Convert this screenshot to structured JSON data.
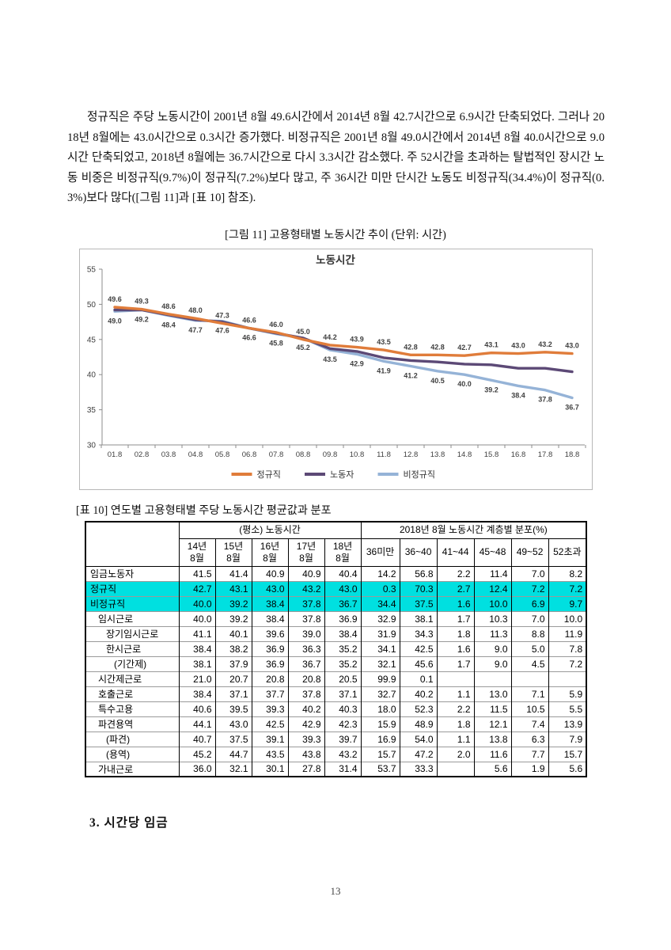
{
  "page": {
    "paragraph": "정규직은 주당 노동시간이 2001년 8월 49.6시간에서 2014년 8월 42.7시간으로 6.9시간 단축되었다. 그러나 2018년 8월에는 43.0시간으로 0.3시간 증가했다. 비정규직은 2001년 8월 49.0시간에서 2014년 8월 40.0시간으로 9.0시간 단축되었고, 2018년 8월에는 36.7시간으로 다시 3.3시간 감소했다. 주 52시간을 초과하는 탈법적인 장시간 노동 비중은 비정규직(9.7%)이 정규직(7.2%)보다 많고, 주 36시간 미만 단시간 노동도 비정규직(34.4%)이 정규직(0.3%)보다 많다([그림 11]과 [표 10] 참조).",
    "figure_caption": "[그림 11] 고용형태별 노동시간 추이 (단위: 시간)",
    "table_caption": "[표 10] 연도별 고용형태별 주당 노동시간 평균값과 분포",
    "section_heading": "3. 시간당 임금",
    "page_number": "13"
  },
  "chart_data": {
    "type": "line",
    "title": "노동시간",
    "x": [
      "01.8",
      "02.8",
      "03.8",
      "04.8",
      "05.8",
      "06.8",
      "07.8",
      "08.8",
      "09.8",
      "10.8",
      "11.8",
      "12.8",
      "13.8",
      "14.8",
      "15.8",
      "16.8",
      "17.8",
      "18.8"
    ],
    "ylim": [
      30,
      55
    ],
    "yticks": [
      30,
      35,
      40,
      45,
      50,
      55
    ],
    "grid": false,
    "legend_position": "bottom",
    "axis_color": "#8c8c8c",
    "label_color": "#3f3f3f",
    "series": [
      {
        "name": "비정규직",
        "color": "#95b3d7",
        "label_side": "below",
        "labels_shown": true,
        "values": [
          49.0,
          49.2,
          48.4,
          47.7,
          47.6,
          46.6,
          45.8,
          45.2,
          43.5,
          42.9,
          41.9,
          41.2,
          40.5,
          40.0,
          39.2,
          38.4,
          37.8,
          36.7
        ]
      },
      {
        "name": "노동자",
        "color": "#5c4976",
        "label_side": "none",
        "labels_shown": false,
        "values": [
          49.2,
          49.2,
          48.5,
          47.8,
          47.5,
          46.6,
          45.9,
          45.2,
          43.7,
          43.3,
          42.4,
          42.0,
          41.8,
          41.5,
          41.4,
          40.9,
          40.9,
          40.4
        ]
      },
      {
        "name": "정규직",
        "color": "#e07c3a",
        "label_side": "above",
        "labels_shown": true,
        "values": [
          49.6,
          49.3,
          48.6,
          48.0,
          47.3,
          46.6,
          46.0,
          45.0,
          44.2,
          43.9,
          43.5,
          42.8,
          42.8,
          42.7,
          43.1,
          43.0,
          43.2,
          43.0
        ]
      }
    ],
    "legend_order": [
      "정규직",
      "노동자",
      "비정규직"
    ]
  },
  "table": {
    "highlight_color": "#00e0e0",
    "group_headers": [
      "(평소) 노동시간",
      "2018년 8월 노동시간 계층별 분포(%)"
    ],
    "col_headers": [
      "14년\n8월",
      "15년\n8월",
      "16년\n8월",
      "17년\n8월",
      "18년\n8월",
      "36미만",
      "36~40",
      "41~44",
      "45~48",
      "49~52",
      "52초과"
    ],
    "rows": [
      {
        "label": "임금노동자",
        "indent": 0,
        "highlight": false,
        "values": [
          "41.5",
          "41.4",
          "40.9",
          "40.9",
          "40.4",
          "14.2",
          "56.8",
          "2.2",
          "11.4",
          "7.0",
          "8.2"
        ]
      },
      {
        "label": "정규직",
        "indent": 0,
        "highlight": true,
        "values": [
          "42.7",
          "43.1",
          "43.0",
          "43.2",
          "43.0",
          "0.3",
          "70.3",
          "2.7",
          "12.4",
          "7.2",
          "7.2"
        ]
      },
      {
        "label": "비정규직",
        "indent": 0,
        "highlight": true,
        "values": [
          "40.0",
          "39.2",
          "38.4",
          "37.8",
          "36.7",
          "34.4",
          "37.5",
          "1.6",
          "10.0",
          "6.9",
          "9.7"
        ]
      },
      {
        "label": "임시근로",
        "indent": 1,
        "highlight": false,
        "values": [
          "40.0",
          "39.2",
          "38.4",
          "37.8",
          "36.9",
          "32.9",
          "38.1",
          "1.7",
          "10.3",
          "7.0",
          "10.0"
        ]
      },
      {
        "label": "장기임시근로",
        "indent": 2,
        "highlight": false,
        "values": [
          "41.1",
          "40.1",
          "39.6",
          "39.0",
          "38.4",
          "31.9",
          "34.3",
          "1.8",
          "11.3",
          "8.8",
          "11.9"
        ]
      },
      {
        "label": "한시근로",
        "indent": 2,
        "highlight": false,
        "values": [
          "38.4",
          "38.2",
          "36.9",
          "36.3",
          "35.2",
          "34.1",
          "42.5",
          "1.6",
          "9.0",
          "5.0",
          "7.8"
        ]
      },
      {
        "label": "(기간제)",
        "indent": 3,
        "highlight": false,
        "values": [
          "38.1",
          "37.9",
          "36.9",
          "36.7",
          "35.2",
          "32.1",
          "45.6",
          "1.7",
          "9.0",
          "4.5",
          "7.2"
        ]
      },
      {
        "label": "시간제근로",
        "indent": 1,
        "highlight": false,
        "values": [
          "21.0",
          "20.7",
          "20.8",
          "20.8",
          "20.5",
          "99.9",
          "0.1",
          "",
          "",
          "",
          ""
        ]
      },
      {
        "label": "호출근로",
        "indent": 1,
        "highlight": false,
        "values": [
          "38.4",
          "37.1",
          "37.7",
          "37.8",
          "37.1",
          "32.7",
          "40.2",
          "1.1",
          "13.0",
          "7.1",
          "5.9"
        ]
      },
      {
        "label": "특수고용",
        "indent": 1,
        "highlight": false,
        "values": [
          "40.6",
          "39.5",
          "39.3",
          "40.2",
          "40.3",
          "18.0",
          "52.3",
          "2.2",
          "11.5",
          "10.5",
          "5.5"
        ]
      },
      {
        "label": "파견용역",
        "indent": 1,
        "highlight": false,
        "values": [
          "44.1",
          "43.0",
          "42.5",
          "42.9",
          "42.3",
          "15.9",
          "48.9",
          "1.8",
          "12.1",
          "7.4",
          "13.9"
        ]
      },
      {
        "label": "(파견)",
        "indent": 2,
        "highlight": false,
        "values": [
          "40.7",
          "37.5",
          "39.1",
          "39.3",
          "39.7",
          "16.9",
          "54.0",
          "1.1",
          "13.8",
          "6.3",
          "7.9"
        ]
      },
      {
        "label": "(용역)",
        "indent": 2,
        "highlight": false,
        "values": [
          "45.2",
          "44.7",
          "43.5",
          "43.8",
          "43.2",
          "15.7",
          "47.2",
          "2.0",
          "11.6",
          "7.7",
          "15.7"
        ]
      },
      {
        "label": "가내근로",
        "indent": 1,
        "highlight": false,
        "values": [
          "36.0",
          "32.1",
          "30.1",
          "27.8",
          "31.4",
          "53.7",
          "33.3",
          "",
          "5.6",
          "1.9",
          "5.6"
        ]
      }
    ]
  }
}
